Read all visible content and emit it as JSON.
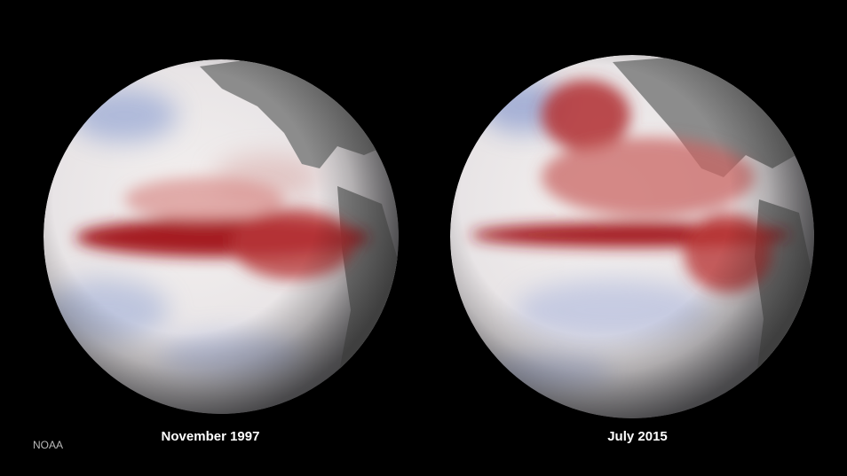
{
  "globes": [
    {
      "label": "November 1997"
    },
    {
      "label": "July 2015"
    }
  ],
  "credit": "NOAA"
}
